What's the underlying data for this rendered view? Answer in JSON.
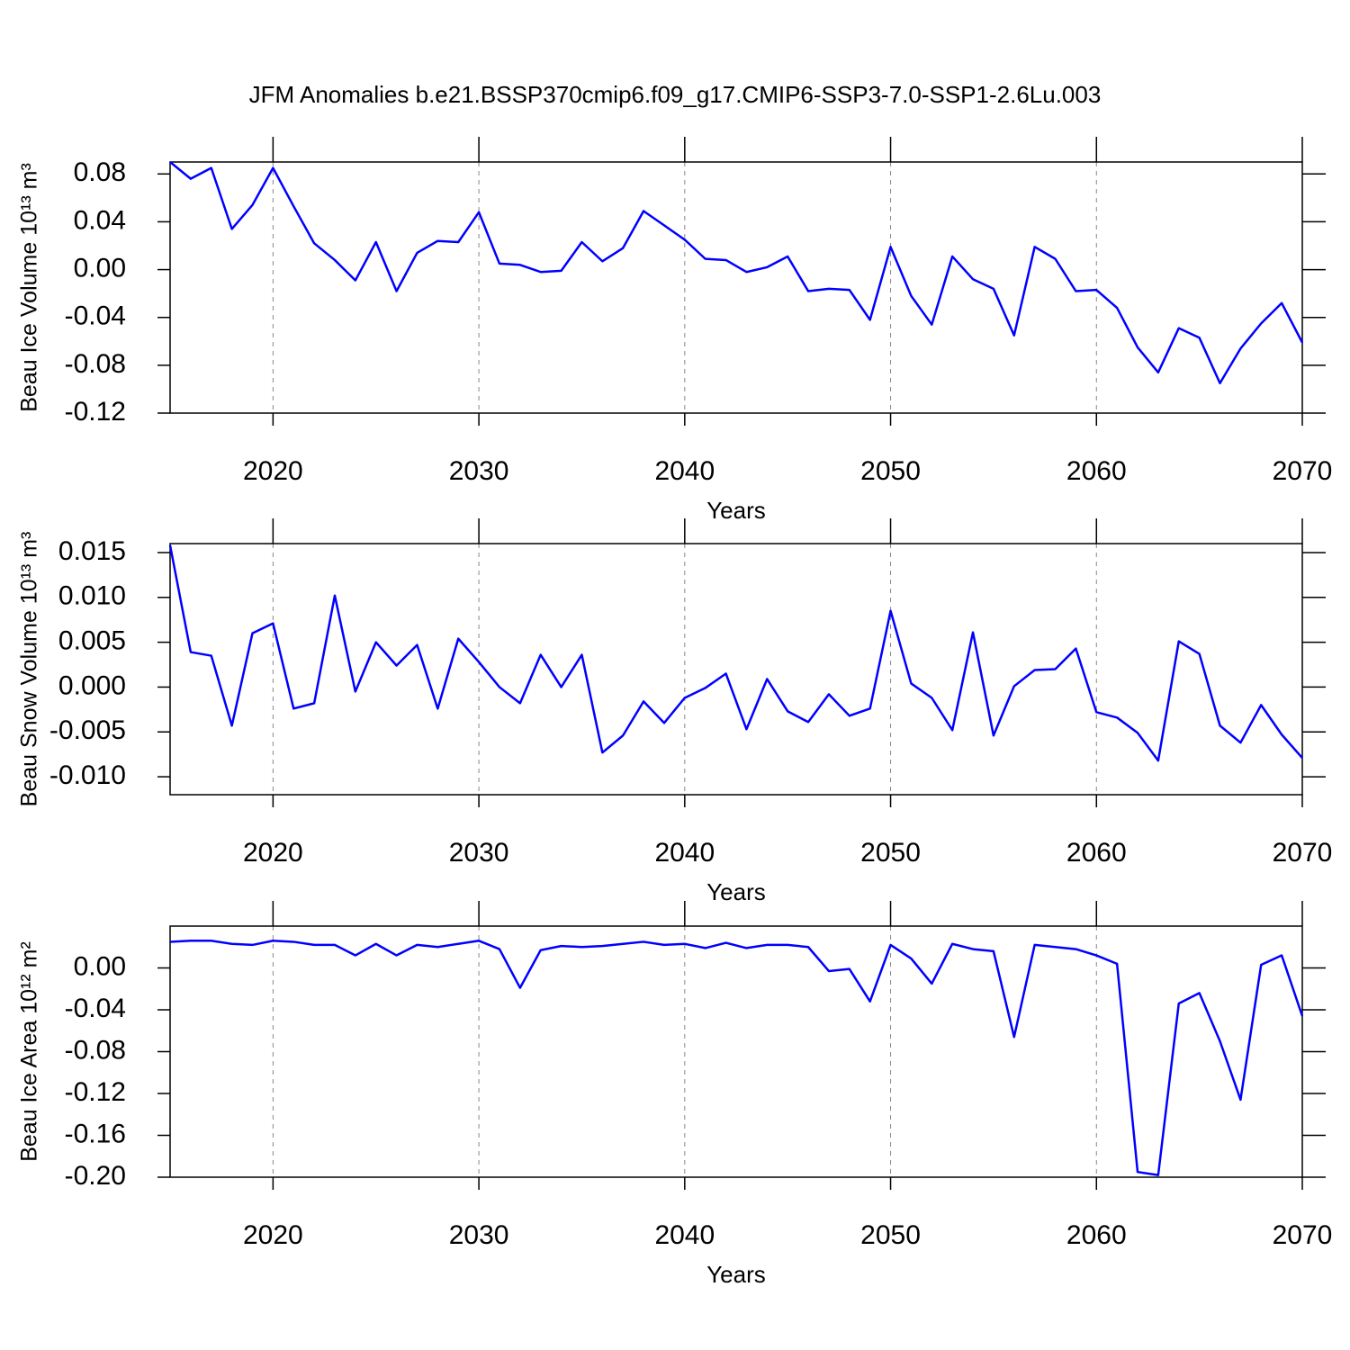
{
  "title": "JFM Anomalies b.e21.BSSP370cmip6.f09_g17.CMIP6-SSP3-7.0-SSP1-2.6Lu.003",
  "chart_data": [
    {
      "type": "line",
      "ylabel": "Beau Ice Volume 10¹³ m³",
      "xlabel": "Years",
      "color": "#0000ff",
      "xgrid": true,
      "x": [
        2015,
        2016,
        2017,
        2018,
        2019,
        2020,
        2021,
        2022,
        2023,
        2024,
        2025,
        2026,
        2027,
        2028,
        2029,
        2030,
        2031,
        2032,
        2033,
        2034,
        2035,
        2036,
        2037,
        2038,
        2039,
        2040,
        2041,
        2042,
        2043,
        2044,
        2045,
        2046,
        2047,
        2048,
        2049,
        2050,
        2051,
        2052,
        2053,
        2054,
        2055,
        2056,
        2057,
        2058,
        2059,
        2060,
        2061,
        2062,
        2063,
        2064,
        2065,
        2066,
        2067,
        2068,
        2069,
        2070
      ],
      "values": [
        0.09,
        0.076,
        0.085,
        0.034,
        0.054,
        0.085,
        0.053,
        0.022,
        0.008,
        -0.009,
        0.023,
        -0.018,
        0.014,
        0.024,
        0.023,
        0.048,
        0.005,
        0.004,
        -0.002,
        -0.001,
        0.023,
        0.007,
        0.018,
        0.049,
        0.037,
        0.025,
        0.009,
        0.008,
        -0.002,
        0.002,
        0.011,
        -0.018,
        -0.016,
        -0.017,
        -0.042,
        0.019,
        -0.022,
        -0.046,
        0.011,
        -0.008,
        -0.016,
        -0.055,
        0.019,
        0.009,
        -0.018,
        -0.017,
        -0.032,
        -0.065,
        -0.086,
        -0.049,
        -0.057,
        -0.095,
        -0.066,
        -0.045,
        -0.028,
        -0.061
      ],
      "xlim": [
        2015,
        2070
      ],
      "xticks": [
        2020,
        2030,
        2040,
        2050,
        2060,
        2070
      ],
      "ylim": [
        -0.12,
        0.09
      ],
      "yticks": [
        -0.12,
        -0.08,
        -0.04,
        {
          "value": 0,
          "label": "0.00"
        },
        0.04,
        0.08
      ]
    },
    {
      "type": "line",
      "ylabel": "Beau Snow Volume 10¹³ m³",
      "xlabel": "Years",
      "color": "#0000ff",
      "xgrid": true,
      "x": [
        2015,
        2016,
        2017,
        2018,
        2019,
        2020,
        2021,
        2022,
        2023,
        2024,
        2025,
        2026,
        2027,
        2028,
        2029,
        2030,
        2031,
        2032,
        2033,
        2034,
        2035,
        2036,
        2037,
        2038,
        2039,
        2040,
        2041,
        2042,
        2043,
        2044,
        2045,
        2046,
        2047,
        2048,
        2049,
        2050,
        2051,
        2052,
        2053,
        2054,
        2055,
        2056,
        2057,
        2058,
        2059,
        2060,
        2061,
        2062,
        2063,
        2064,
        2065,
        2066,
        2067,
        2068,
        2069,
        2070
      ],
      "values": [
        0.0158,
        0.0039,
        0.0035,
        -0.0043,
        0.006,
        0.0071,
        -0.0024,
        -0.0018,
        0.0102,
        -0.0005,
        0.005,
        0.0024,
        0.0047,
        -0.0024,
        0.0054,
        0.0028,
        0.0,
        -0.0018,
        0.0036,
        0.0,
        0.0036,
        -0.0073,
        -0.0054,
        -0.0016,
        -0.004,
        -0.0012,
        -0.0001,
        0.0015,
        -0.0047,
        0.0009,
        -0.0027,
        -0.0039,
        -0.0008,
        -0.0032,
        -0.0024,
        0.0085,
        0.0004,
        -0.0012,
        -0.0048,
        0.0061,
        -0.0054,
        0.0001,
        0.0019,
        0.002,
        0.0043,
        -0.0028,
        -0.0034,
        -0.0051,
        -0.0082,
        0.0051,
        0.0037,
        -0.0043,
        -0.0062,
        -0.002,
        -0.0053,
        -0.0079
      ],
      "xlim": [
        2015,
        2070
      ],
      "xticks": [
        2020,
        2030,
        2040,
        2050,
        2060,
        2070
      ],
      "ylim": [
        -0.012,
        0.016
      ],
      "yticks": [
        {
          "value": -0.01,
          "label": "-0.010"
        },
        -0.005,
        {
          "value": 0,
          "label": "0.000"
        },
        0.005,
        {
          "value": 0.01,
          "label": "0.010"
        },
        0.015
      ]
    },
    {
      "type": "line",
      "ylabel": "Beau Ice Area 10¹² m²",
      "xlabel": "Years",
      "color": "#0000ff",
      "xgrid": true,
      "x": [
        2015,
        2016,
        2017,
        2018,
        2019,
        2020,
        2021,
        2022,
        2023,
        2024,
        2025,
        2026,
        2027,
        2028,
        2029,
        2030,
        2031,
        2032,
        2033,
        2034,
        2035,
        2036,
        2037,
        2038,
        2039,
        2040,
        2041,
        2042,
        2043,
        2044,
        2045,
        2046,
        2047,
        2048,
        2049,
        2050,
        2051,
        2052,
        2053,
        2054,
        2055,
        2056,
        2057,
        2058,
        2059,
        2060,
        2061,
        2062,
        2063,
        2064,
        2065,
        2066,
        2067,
        2068,
        2069,
        2070
      ],
      "values": [
        0.025,
        0.026,
        0.026,
        0.023,
        0.022,
        0.026,
        0.025,
        0.022,
        0.022,
        0.012,
        0.023,
        0.012,
        0.022,
        0.02,
        0.023,
        0.026,
        0.018,
        -0.019,
        0.017,
        0.021,
        0.02,
        0.021,
        0.023,
        0.025,
        0.022,
        0.023,
        0.019,
        0.024,
        0.019,
        0.022,
        0.022,
        0.02,
        -0.003,
        -0.001,
        -0.032,
        0.022,
        0.009,
        -0.015,
        0.023,
        0.018,
        0.016,
        -0.066,
        0.022,
        0.02,
        0.018,
        0.012,
        0.004,
        -0.195,
        -0.198,
        -0.034,
        -0.024,
        -0.07,
        -0.126,
        0.003,
        0.012,
        -0.046
      ],
      "xlim": [
        2015,
        2070
      ],
      "xticks": [
        2020,
        2030,
        2040,
        2050,
        2060,
        2070
      ],
      "ylim": [
        -0.2,
        0.04
      ],
      "yticks": [
        {
          "value": -0.2,
          "label": "-0.20"
        },
        -0.16,
        -0.12,
        -0.08,
        -0.04,
        {
          "value": 0,
          "label": "0.00"
        }
      ]
    }
  ]
}
